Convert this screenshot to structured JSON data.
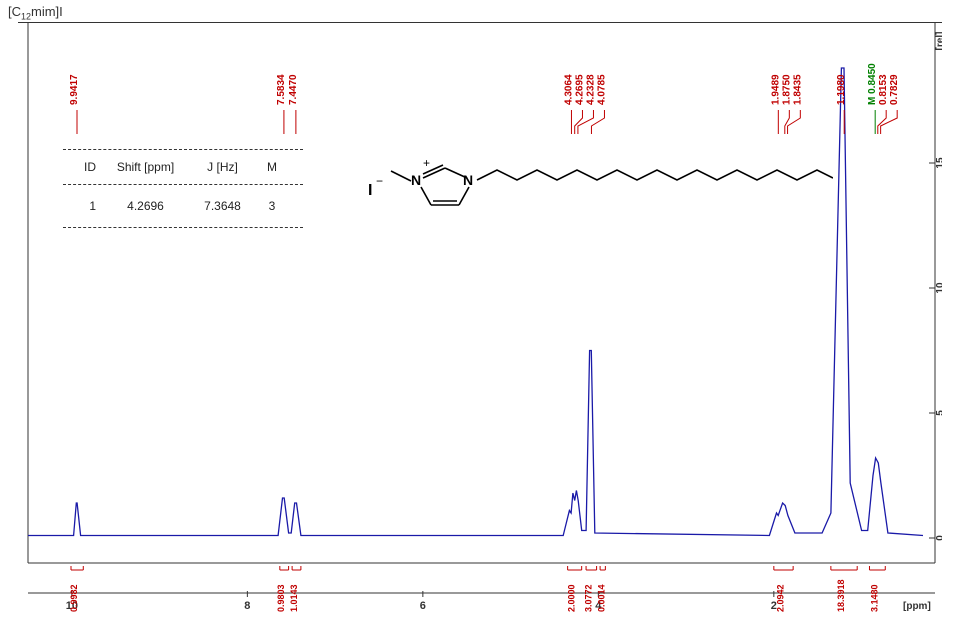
{
  "title_prefix": "[C",
  "title_sub": "12",
  "title_suffix": "mim]I",
  "chart": {
    "type": "nmr-spectrum",
    "background_color": "#ffffff",
    "spectrum_color": "#1a1aa8",
    "xlim_ppm": [
      10.5,
      0.3
    ],
    "ylim": [
      -0.5,
      19
    ],
    "baseline_y": 0,
    "x_ticks": [
      10,
      8,
      6,
      4,
      2
    ],
    "x_axis_title": "[ppm]",
    "y_ticks": [
      0,
      5,
      10,
      15
    ],
    "y_axis_title": "[rel]",
    "peak_label_color": "#c00000",
    "multiplet_label_color": "#008000",
    "integral_color": "#c00000",
    "peaks": [
      {
        "label": "9.9417",
        "ppm": 9.9417,
        "color": "red"
      },
      {
        "label": "7.5834",
        "ppm": 7.5834,
        "color": "red"
      },
      {
        "label": "7.4470",
        "ppm": 7.447,
        "color": "red"
      },
      {
        "label": "4.3064",
        "ppm": 4.3064,
        "color": "red"
      },
      {
        "label": "4.2695",
        "ppm": 4.2695,
        "color": "red"
      },
      {
        "label": "4.2328",
        "ppm": 4.2328,
        "color": "red"
      },
      {
        "label": "4.0785",
        "ppm": 4.0785,
        "color": "red"
      },
      {
        "label": "1.9489",
        "ppm": 1.9489,
        "color": "red"
      },
      {
        "label": "1.8750",
        "ppm": 1.875,
        "color": "red"
      },
      {
        "label": "1.8435",
        "ppm": 1.8435,
        "color": "red"
      },
      {
        "label": "1.1980",
        "ppm": 1.198,
        "color": "red"
      },
      {
        "label": "M 0.8450",
        "ppm": 0.845,
        "color": "green"
      },
      {
        "label": "0.8153",
        "ppm": 0.8153,
        "color": "red"
      },
      {
        "label": "0.7829",
        "ppm": 0.7829,
        "color": "red"
      }
    ],
    "spectrum_profile": [
      {
        "ppm": 10.5,
        "y": 0.1
      },
      {
        "ppm": 9.98,
        "y": 0.1
      },
      {
        "ppm": 9.95,
        "y": 1.4
      },
      {
        "ppm": 9.94,
        "y": 1.4
      },
      {
        "ppm": 9.9,
        "y": 0.1
      },
      {
        "ppm": 7.65,
        "y": 0.1
      },
      {
        "ppm": 7.6,
        "y": 1.6
      },
      {
        "ppm": 7.58,
        "y": 1.6
      },
      {
        "ppm": 7.53,
        "y": 0.2
      },
      {
        "ppm": 7.5,
        "y": 0.2
      },
      {
        "ppm": 7.46,
        "y": 1.4
      },
      {
        "ppm": 7.44,
        "y": 1.4
      },
      {
        "ppm": 7.39,
        "y": 0.1
      },
      {
        "ppm": 4.4,
        "y": 0.1
      },
      {
        "ppm": 4.33,
        "y": 1.1
      },
      {
        "ppm": 4.31,
        "y": 1.0
      },
      {
        "ppm": 4.29,
        "y": 1.8
      },
      {
        "ppm": 4.27,
        "y": 1.5
      },
      {
        "ppm": 4.25,
        "y": 1.9
      },
      {
        "ppm": 4.23,
        "y": 1.5
      },
      {
        "ppm": 4.19,
        "y": 0.3
      },
      {
        "ppm": 4.14,
        "y": 0.3
      },
      {
        "ppm": 4.1,
        "y": 7.5
      },
      {
        "ppm": 4.08,
        "y": 7.5
      },
      {
        "ppm": 4.04,
        "y": 0.2
      },
      {
        "ppm": 2.05,
        "y": 0.1
      },
      {
        "ppm": 1.97,
        "y": 1.0
      },
      {
        "ppm": 1.95,
        "y": 0.9
      },
      {
        "ppm": 1.9,
        "y": 1.4
      },
      {
        "ppm": 1.87,
        "y": 1.3
      },
      {
        "ppm": 1.84,
        "y": 0.9
      },
      {
        "ppm": 1.76,
        "y": 0.2
      },
      {
        "ppm": 1.45,
        "y": 0.2
      },
      {
        "ppm": 1.35,
        "y": 1.0
      },
      {
        "ppm": 1.23,
        "y": 18.8
      },
      {
        "ppm": 1.2,
        "y": 18.8
      },
      {
        "ppm": 1.13,
        "y": 2.2
      },
      {
        "ppm": 1.0,
        "y": 0.3
      },
      {
        "ppm": 0.93,
        "y": 0.3
      },
      {
        "ppm": 0.87,
        "y": 2.5
      },
      {
        "ppm": 0.84,
        "y": 3.2
      },
      {
        "ppm": 0.81,
        "y": 3.0
      },
      {
        "ppm": 0.78,
        "y": 2.2
      },
      {
        "ppm": 0.7,
        "y": 0.2
      },
      {
        "ppm": 0.3,
        "y": 0.1
      }
    ],
    "integrals": [
      {
        "label": "0.9982",
        "ppm_center": 9.94,
        "width": 0.14
      },
      {
        "label": "0.9803",
        "ppm_center": 7.58,
        "width": 0.1
      },
      {
        "label": "1.0143",
        "ppm_center": 7.44,
        "width": 0.1
      },
      {
        "label": "2.0000",
        "ppm_center": 4.27,
        "width": 0.16
      },
      {
        "label": "3.0772",
        "ppm_center": 4.08,
        "width": 0.12
      },
      {
        "label": "0.0014",
        "ppm_center": 3.95,
        "width": 0.06
      },
      {
        "label": "2.0942",
        "ppm_center": 1.89,
        "width": 0.22
      },
      {
        "label": "18.3918",
        "ppm_center": 1.2,
        "width": 0.3
      },
      {
        "label": "3.1480",
        "ppm_center": 0.82,
        "width": 0.18
      }
    ]
  },
  "inset_table": {
    "headers": {
      "id": "ID",
      "shift": "Shift [ppm]",
      "j": "J [Hz]",
      "m": "M"
    },
    "rows": [
      {
        "id": "1",
        "shift": "4.2696",
        "j": "7.3648",
        "m": "3"
      }
    ]
  },
  "molecule": {
    "label_minus": "I",
    "label_plus": "+",
    "atom_n": "N"
  }
}
